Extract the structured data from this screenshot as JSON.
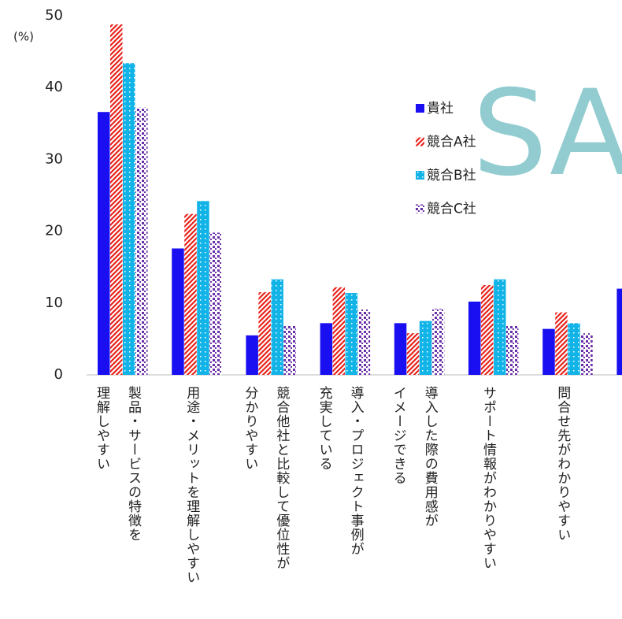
{
  "chart_data": {
    "type": "bar",
    "y_label": "(%)",
    "watermark": "SA",
    "categories": [
      "製品・サービスの特徴を\n理解しやすい",
      "用途・メリットを理解しやすい",
      "競合他社と比較して優位性が\n分かりやすい",
      "導入・プロジェクト事例が\n充実している",
      "導入した際の費用感が\nイメージできる",
      "サポート情報がわかりやすい",
      "問合せ先がわかりやすい",
      null
    ],
    "series": [
      {
        "name": "貴社",
        "color": "#1a0ff0",
        "pattern": "solid",
        "values": [
          36.6,
          17.6,
          5.5,
          7.2,
          7.2,
          10.2,
          6.4,
          12.0
        ]
      },
      {
        "name": "競合A社",
        "color": "#e8231b",
        "pattern": "stripes",
        "values": [
          48.8,
          22.4,
          11.5,
          12.2,
          5.8,
          12.5,
          8.7,
          null
        ]
      },
      {
        "name": "競合B社",
        "color": "#12b4e8",
        "pattern": "dots",
        "values": [
          43.4,
          24.2,
          13.3,
          11.4,
          7.5,
          13.3,
          7.2,
          null
        ]
      },
      {
        "name": "競合C社",
        "color": "#6a2fa8",
        "pattern": "checks",
        "values": [
          37.2,
          19.8,
          6.9,
          9.1,
          9.2,
          6.9,
          5.8,
          null
        ]
      }
    ],
    "ylim": [
      0,
      50
    ],
    "yticks": [
      0,
      10,
      20,
      30,
      40,
      50
    ]
  }
}
